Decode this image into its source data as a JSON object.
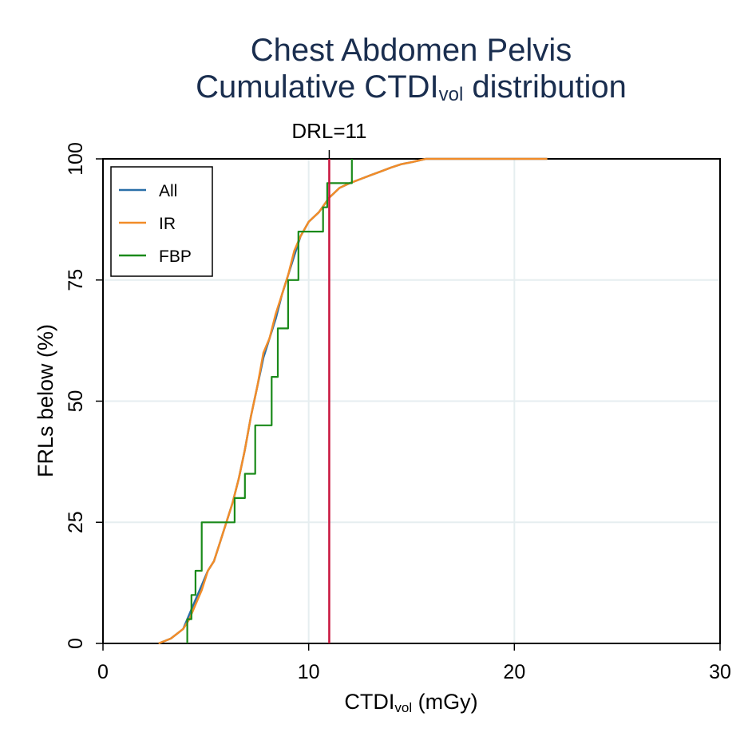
{
  "chart_data": {
    "type": "line",
    "title_line1": "Chest Abdomen Pelvis",
    "title_line2_main": "Cumulative CTDI",
    "title_line2_sub": "vol",
    "title_line2_rest": " distribution",
    "xlabel_main": "CTDI",
    "xlabel_sub": "vol",
    "xlabel_rest": " (mGy)",
    "ylabel": "FRLs below (%)",
    "xlim": [
      0,
      30
    ],
    "ylim": [
      0,
      100
    ],
    "xticks": [
      0,
      10,
      20,
      30
    ],
    "yticks": [
      0,
      25,
      50,
      75,
      100
    ],
    "grid": true,
    "legend_position": "top-left",
    "drl": {
      "value": 11,
      "label": "DRL=11",
      "color": "#c8143c"
    },
    "series": [
      {
        "name": "All",
        "color": "#2a6fa8",
        "points": [
          [
            2.7,
            0
          ],
          [
            3.0,
            0.5
          ],
          [
            3.3,
            1
          ],
          [
            3.6,
            2
          ],
          [
            3.9,
            3
          ],
          [
            4.2,
            6
          ],
          [
            4.5,
            9
          ],
          [
            4.8,
            12
          ],
          [
            5.1,
            15
          ],
          [
            5.4,
            17
          ],
          [
            5.7,
            21
          ],
          [
            6.0,
            25
          ],
          [
            6.3,
            29
          ],
          [
            6.6,
            34
          ],
          [
            6.9,
            40
          ],
          [
            7.2,
            47
          ],
          [
            7.5,
            53
          ],
          [
            7.8,
            59
          ],
          [
            8.1,
            63
          ],
          [
            8.4,
            67
          ],
          [
            8.7,
            72
          ],
          [
            9.0,
            76
          ],
          [
            9.3,
            80
          ],
          [
            9.6,
            84
          ],
          [
            10.0,
            87
          ],
          [
            10.5,
            89
          ],
          [
            11.0,
            92
          ],
          [
            11.5,
            94
          ],
          [
            12.0,
            95
          ],
          [
            12.5,
            95.8
          ],
          [
            13.0,
            96.6
          ],
          [
            13.5,
            97.4
          ],
          [
            14.0,
            98.2
          ],
          [
            14.5,
            98.9
          ],
          [
            15.0,
            99.3
          ],
          [
            15.7,
            100
          ],
          [
            21.6,
            100
          ]
        ]
      },
      {
        "name": "IR",
        "color": "#f28c28",
        "points": [
          [
            2.7,
            0
          ],
          [
            3.0,
            0.5
          ],
          [
            3.3,
            1
          ],
          [
            3.6,
            2
          ],
          [
            3.9,
            3
          ],
          [
            4.2,
            5
          ],
          [
            4.5,
            8
          ],
          [
            4.8,
            11
          ],
          [
            5.1,
            15
          ],
          [
            5.4,
            17
          ],
          [
            5.7,
            21
          ],
          [
            6.0,
            25
          ],
          [
            6.3,
            29
          ],
          [
            6.6,
            34
          ],
          [
            6.9,
            40
          ],
          [
            7.2,
            47
          ],
          [
            7.5,
            53
          ],
          [
            7.8,
            60
          ],
          [
            8.1,
            63
          ],
          [
            8.4,
            68
          ],
          [
            8.7,
            72
          ],
          [
            9.0,
            76
          ],
          [
            9.3,
            81
          ],
          [
            9.6,
            84
          ],
          [
            10.0,
            87
          ],
          [
            10.5,
            89
          ],
          [
            11.0,
            92
          ],
          [
            11.5,
            94
          ],
          [
            12.0,
            95
          ],
          [
            12.5,
            95.8
          ],
          [
            13.0,
            96.6
          ],
          [
            13.5,
            97.4
          ],
          [
            14.0,
            98.2
          ],
          [
            14.5,
            98.9
          ],
          [
            15.0,
            99.3
          ],
          [
            15.7,
            100
          ],
          [
            21.6,
            100
          ]
        ]
      },
      {
        "name": "FBP",
        "color": "#1a8a1a",
        "steps": [
          [
            4.1,
            5
          ],
          [
            4.3,
            10
          ],
          [
            4.5,
            15
          ],
          [
            4.8,
            25
          ],
          [
            6.4,
            30
          ],
          [
            6.9,
            35
          ],
          [
            7.4,
            45
          ],
          [
            8.2,
            55
          ],
          [
            8.5,
            65
          ],
          [
            9.0,
            75
          ],
          [
            9.5,
            85
          ],
          [
            10.7,
            90
          ],
          [
            10.9,
            95
          ],
          [
            12.1,
            100
          ]
        ]
      }
    ]
  }
}
